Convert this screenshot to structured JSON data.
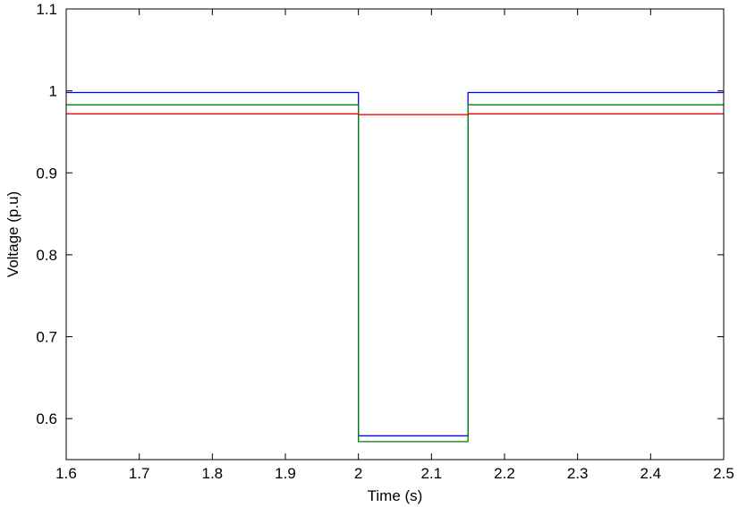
{
  "chart_data": {
    "type": "line",
    "title": "",
    "xlabel": "Time (s)",
    "ylabel": "Voltage (p.u)",
    "xlim": [
      1.6,
      2.5
    ],
    "ylim": [
      0.55,
      1.1
    ],
    "xticks": [
      1.6,
      1.7,
      1.8,
      1.9,
      2.0,
      2.1,
      2.2,
      2.3,
      2.4,
      2.5
    ],
    "xtick_labels": [
      "1.6",
      "1.7",
      "1.8",
      "1.9",
      "2",
      "2.1",
      "2.2",
      "2.3",
      "2.4",
      "2.5"
    ],
    "yticks": [
      0.6,
      0.7,
      0.8,
      0.9,
      1.0,
      1.1
    ],
    "ytick_labels": [
      "0.6",
      "0.7",
      "0.8",
      "0.9",
      "1",
      "1.1"
    ],
    "grid": false,
    "legend": "none",
    "series": [
      {
        "color": "#0000ff",
        "x": [
          1.6,
          2.0,
          2.0,
          2.15,
          2.15,
          2.5
        ],
        "y": [
          0.998,
          0.998,
          0.579,
          0.579,
          0.998,
          0.998
        ]
      },
      {
        "color": "#008000",
        "x": [
          1.6,
          2.0,
          2.0,
          2.15,
          2.15,
          2.5
        ],
        "y": [
          0.983,
          0.983,
          0.572,
          0.572,
          0.983,
          0.983
        ]
      },
      {
        "color": "#ff0000",
        "x": [
          1.6,
          2.0,
          2.0,
          2.15,
          2.15,
          2.5
        ],
        "y": [
          0.972,
          0.972,
          0.971,
          0.971,
          0.972,
          0.972
        ]
      }
    ]
  }
}
